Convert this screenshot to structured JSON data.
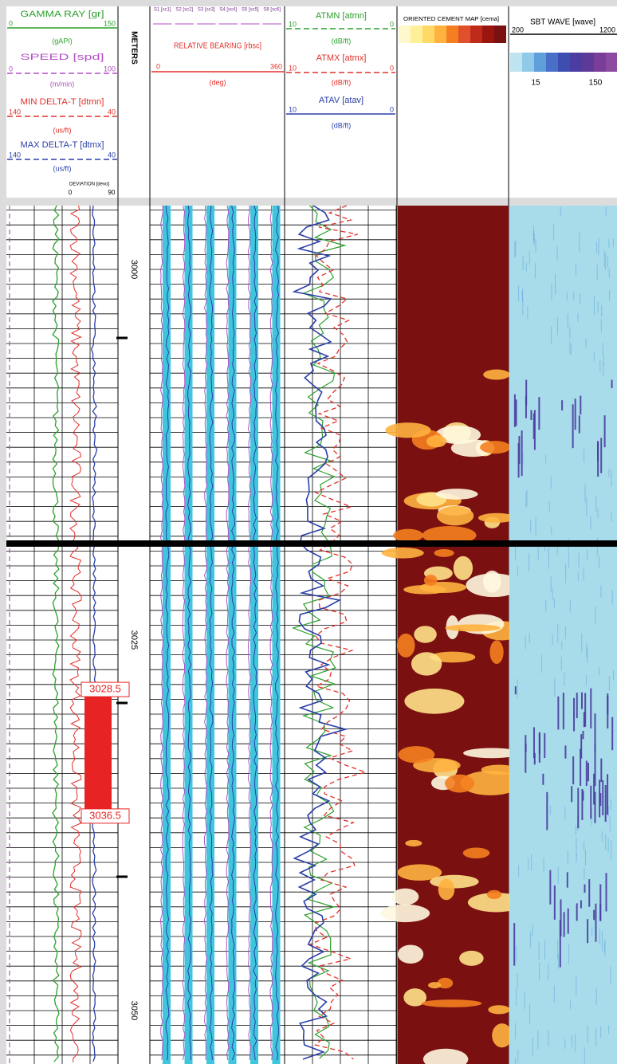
{
  "track1": {
    "curves": [
      {
        "name": "GAMMA RAY [gr]",
        "units": "(gAPI)",
        "left": 0,
        "right": 150,
        "color": "#2ca02c",
        "dashed": false
      },
      {
        "name": "SPEED [spd]",
        "units": "(m/min)",
        "left": 0,
        "right": 100,
        "color": "#b24fc4",
        "dashed": true
      },
      {
        "name": "MIN DELTA-T [dtmn]",
        "units": "(us/ft)",
        "left": 140,
        "right": 40,
        "color": "#e0302a",
        "dashed": true
      },
      {
        "name": "MAX DELTA-T [dtmx]",
        "units": "(us/ft)",
        "left": 140,
        "right": 40,
        "color": "#2b3fa8",
        "dashed": true
      }
    ],
    "deviation": {
      "name": "DEVIATION [devo]",
      "left": 0,
      "right": 90
    }
  },
  "depth_track": {
    "title": "METERS"
  },
  "track2": {
    "sectors": [
      "S1 [sc1]",
      "S2 [sc2]",
      "S3 [sc3]",
      "S4 [sc4]",
      "S5 [sc5]",
      "S6 [sc6]"
    ],
    "bearing": {
      "name": "RELATIVE BEARING [rbsc]",
      "units": "(deg)",
      "left": 0,
      "right": 360,
      "color": "#e0302a"
    }
  },
  "track3": {
    "curves": [
      {
        "name": "ATMN [atmn]",
        "units": "(dB/ft)",
        "left": 10,
        "right": 0,
        "color": "#2ca02c",
        "dashed": true
      },
      {
        "name": "ATMX [atmx]",
        "units": "(dB/ft)",
        "left": 10,
        "right": 0,
        "color": "#e0302a",
        "dashed": true
      },
      {
        "name": "ATAV [atav]",
        "units": "(dB/ft)",
        "left": 10,
        "right": 0,
        "color": "#2b3fa8",
        "dashed": false
      }
    ]
  },
  "track4": {
    "title": "ORIENTED CEMENT MAP [cema]"
  },
  "track5": {
    "title": "SBT WAVE [wave]",
    "left": 200,
    "right": 1200,
    "scale_labels": [
      15,
      150
    ]
  },
  "depth_labels": [
    3000,
    3025,
    3050
  ],
  "interval": {
    "top": 3028.5,
    "bottom": 3036.5
  }
}
